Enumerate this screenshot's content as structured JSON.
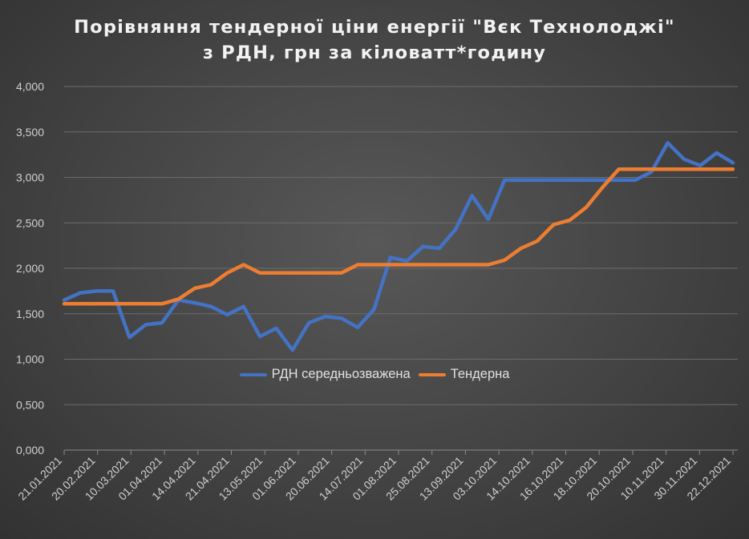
{
  "chart_data": {
    "type": "line",
    "title_line1": "Порівняння тендерної ціни енергії \"Вєк Технолоджі\"",
    "title_line2": "з РДН, грн за кіловатт*годину",
    "xlabel": "",
    "ylabel": "",
    "ylim": [
      0,
      4
    ],
    "yticks": [
      "0,000",
      "0,500",
      "1,000",
      "1,500",
      "2,000",
      "2,500",
      "3,000",
      "3,500",
      "4,000"
    ],
    "grid": true,
    "legend_position": "center",
    "x_tick_labels": [
      "21.01.2021",
      "20.02.2021",
      "10.03.2021",
      "01.04.2021",
      "14.04.2021",
      "21.04.2021",
      "13.05.2021",
      "01.06.2021",
      "20.06.2021",
      "14.07.2021",
      "01.08.2021",
      "25.08.2021",
      "13.09.2021",
      "03.10.2021",
      "14.10.2021",
      "16.10.2021",
      "18.10.2021",
      "20.10.2021",
      "10.11.2021",
      "30.11.2021",
      "22.12.2021"
    ],
    "series": [
      {
        "name": "РДН середньозважена",
        "color": "#4472c4",
        "values": [
          1.65,
          1.73,
          1.75,
          1.75,
          1.24,
          1.38,
          1.4,
          1.65,
          1.62,
          1.58,
          1.49,
          1.58,
          1.25,
          1.34,
          1.1,
          1.4,
          1.47,
          1.45,
          1.35,
          1.55,
          2.12,
          2.08,
          2.24,
          2.22,
          2.43,
          2.8,
          2.54,
          2.97,
          2.97,
          2.97,
          2.97,
          2.97,
          2.97,
          2.97,
          2.97,
          2.97,
          3.06,
          3.38,
          3.2,
          3.13,
          3.27,
          3.16
        ]
      },
      {
        "name": "Тендерна",
        "color": "#ed7d31",
        "values": [
          1.61,
          1.61,
          1.61,
          1.61,
          1.61,
          1.61,
          1.61,
          1.66,
          1.78,
          1.82,
          1.95,
          2.04,
          1.95,
          1.95,
          1.95,
          1.95,
          1.95,
          1.95,
          2.04,
          2.04,
          2.04,
          2.04,
          2.04,
          2.04,
          2.04,
          2.04,
          2.04,
          2.09,
          2.22,
          2.3,
          2.48,
          2.53,
          2.67,
          2.89,
          3.09,
          3.09,
          3.09,
          3.09,
          3.09,
          3.09,
          3.09,
          3.09
        ]
      }
    ]
  }
}
